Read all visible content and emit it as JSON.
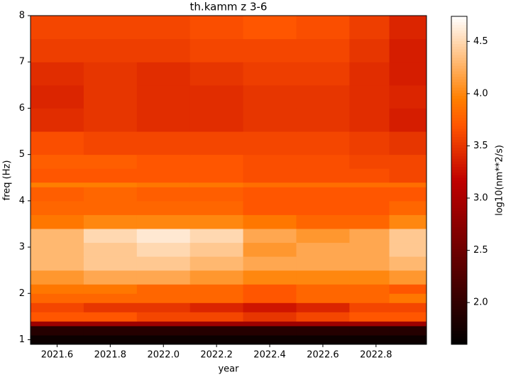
{
  "chart_data": {
    "type": "heatmap",
    "title": "th.kamm z 3-6",
    "x_label": "year",
    "y_label": "freq (Hz)",
    "colorbar_label": "log10(nm**2/s)",
    "colormap": "gist_heat",
    "xlim": [
      2021.5,
      2022.99
    ],
    "ylim": [
      0.9,
      8
    ],
    "xticks": [
      2021.6,
      2021.8,
      {
        "value": 2022,
        "label": "2022.0"
      },
      2022.2,
      2022.4,
      2022.6,
      2022.8
    ],
    "yticks": [
      1,
      2,
      3,
      4,
      5,
      6,
      7,
      8
    ],
    "clim": [
      1.6,
      4.74
    ],
    "cticks": [
      {
        "value": 2,
        "label": "2.0"
      },
      2.5,
      {
        "value": 3,
        "label": "3.0"
      },
      3.5,
      {
        "value": 4,
        "label": "4.0"
      },
      4.5
    ],
    "x_edges": [
      2021.5,
      2021.7,
      2021.9,
      2022.1,
      2022.3,
      2022.5,
      2022.7,
      2022.85,
      2022.99
    ],
    "y_edges": [
      0.9,
      1.1,
      1.3,
      1.4,
      1.6,
      1.8,
      2.0,
      2.2,
      2.5,
      2.8,
      3.1,
      3.4,
      3.7,
      4.0,
      4.3,
      4.4,
      4.7,
      5.0,
      5.5,
      6.0,
      6.5,
      7.0,
      7.5,
      8.0
    ],
    "values": [
      [
        1.7,
        1.7,
        1.7,
        1.7,
        1.7,
        1.7,
        1.7,
        1.7
      ],
      [
        1.9,
        1.9,
        1.9,
        1.9,
        1.9,
        1.9,
        1.9,
        1.9
      ],
      [
        2.9,
        2.9,
        2.9,
        2.9,
        2.9,
        2.9,
        2.9,
        2.9
      ],
      [
        3.7,
        3.7,
        3.6,
        3.6,
        3.5,
        3.6,
        3.7,
        3.7
      ],
      [
        3.6,
        3.5,
        3.5,
        3.4,
        3.3,
        3.4,
        3.6,
        3.6
      ],
      [
        3.8,
        3.8,
        3.8,
        3.8,
        3.7,
        3.8,
        3.8,
        3.9
      ],
      [
        3.9,
        3.9,
        3.8,
        3.8,
        3.7,
        3.8,
        3.8,
        3.7
      ],
      [
        4.1,
        4.2,
        4.2,
        4.1,
        4.0,
        4.0,
        4.0,
        4.1
      ],
      [
        4.3,
        4.4,
        4.4,
        4.3,
        4.2,
        4.2,
        4.2,
        4.3
      ],
      [
        4.3,
        4.4,
        4.5,
        4.4,
        4.1,
        4.2,
        4.2,
        4.4
      ],
      [
        4.3,
        4.5,
        4.6,
        4.5,
        4.2,
        4.1,
        4.2,
        4.4
      ],
      [
        3.9,
        4.0,
        4.0,
        4.0,
        3.9,
        3.8,
        3.8,
        4.0
      ],
      [
        3.8,
        3.8,
        3.8,
        3.8,
        3.7,
        3.7,
        3.7,
        3.8
      ],
      [
        3.75,
        3.8,
        3.75,
        3.75,
        3.7,
        3.7,
        3.7,
        3.7
      ],
      [
        3.95,
        3.95,
        3.9,
        3.9,
        3.85,
        3.85,
        3.85,
        3.85
      ],
      [
        3.7,
        3.7,
        3.7,
        3.7,
        3.65,
        3.65,
        3.65,
        3.6
      ],
      [
        3.75,
        3.75,
        3.7,
        3.7,
        3.65,
        3.65,
        3.6,
        3.6
      ],
      [
        3.65,
        3.6,
        3.6,
        3.6,
        3.6,
        3.6,
        3.55,
        3.5
      ],
      [
        3.45,
        3.5,
        3.45,
        3.45,
        3.5,
        3.5,
        3.45,
        3.35
      ],
      [
        3.4,
        3.5,
        3.45,
        3.45,
        3.5,
        3.5,
        3.45,
        3.4
      ],
      [
        3.45,
        3.5,
        3.45,
        3.5,
        3.55,
        3.55,
        3.45,
        3.35
      ],
      [
        3.55,
        3.55,
        3.55,
        3.6,
        3.6,
        3.6,
        3.5,
        3.35
      ],
      [
        3.6,
        3.6,
        3.6,
        3.65,
        3.7,
        3.65,
        3.55,
        3.4
      ]
    ]
  }
}
